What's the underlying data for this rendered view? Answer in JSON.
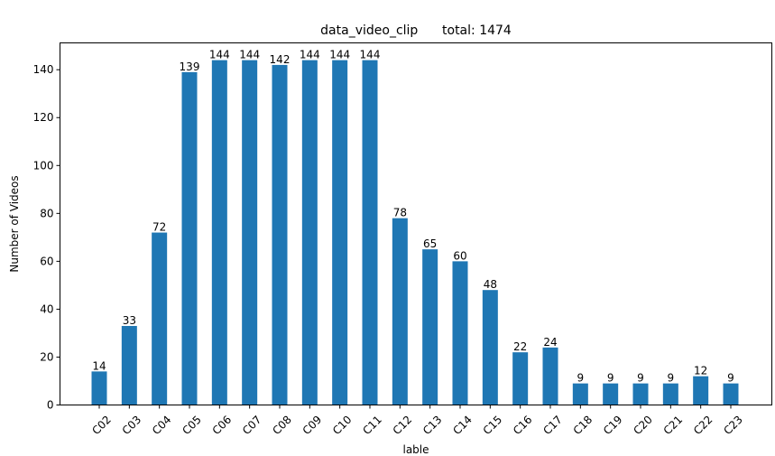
{
  "chart_data": {
    "type": "bar",
    "title": "data_video_clip      total: 1474",
    "xlabel": "lable",
    "ylabel": "Number of Videos",
    "categories": [
      "C02",
      "C03",
      "C04",
      "C05",
      "C06",
      "C07",
      "C08",
      "C09",
      "C10",
      "C11",
      "C12",
      "C13",
      "C14",
      "C15",
      "C16",
      "C17",
      "C18",
      "C19",
      "C20",
      "C21",
      "C22",
      "C23"
    ],
    "values": [
      14,
      33,
      72,
      139,
      144,
      144,
      142,
      144,
      144,
      144,
      78,
      65,
      60,
      48,
      22,
      24,
      9,
      9,
      9,
      9,
      12,
      9
    ],
    "ylim": [
      0,
      151.2
    ],
    "yticks": [
      0,
      20,
      40,
      60,
      80,
      100,
      120,
      140
    ],
    "bar_color": "#1f77b4",
    "grid": false,
    "legend": "none"
  }
}
